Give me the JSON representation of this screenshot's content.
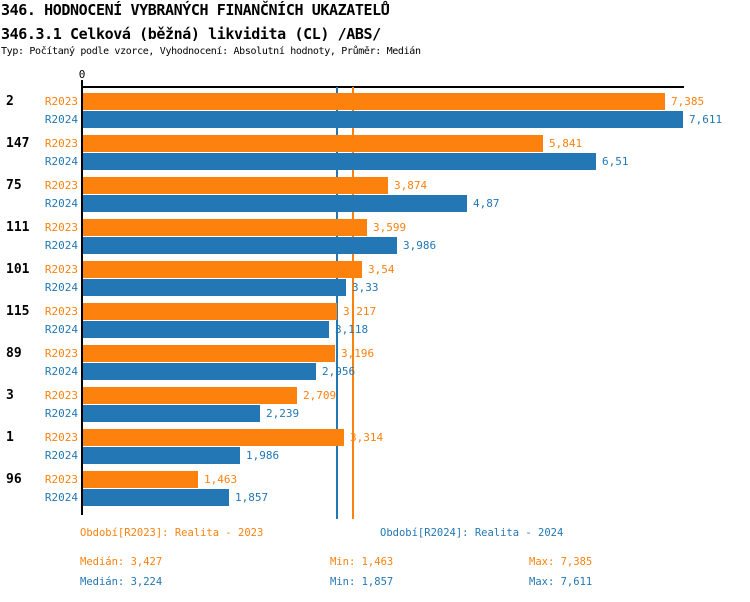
{
  "header": {
    "title": "346. HODNOCENÍ VYBRANÝCH FINANČNÍCH UKAZATELŮ",
    "subtitle": "346.3.1 Celková (běžná) likvidita (CL) /ABS/",
    "meta": "Typ: Počítaný podle vzorce, Vyhodnocení: Absolutní hodnoty, Průměr: Medián"
  },
  "colors": {
    "r2023": "#fd810d",
    "r2024": "#2277b4",
    "axis": "#000000",
    "text": "#000000"
  },
  "chart_data": {
    "type": "bar",
    "orientation": "horizontal",
    "grid": false,
    "legend_position": "none",
    "xlim": [
      0,
      7.611
    ],
    "zero_label": "0",
    "categories": [
      "2",
      "147",
      "75",
      "111",
      "101",
      "115",
      "89",
      "3",
      "1",
      "96"
    ],
    "series": [
      {
        "name": "R2023",
        "color_key": "r2023",
        "values": [
          7.385,
          5.841,
          3.874,
          3.599,
          3.54,
          3.217,
          3.196,
          2.709,
          3.314,
          1.463
        ],
        "value_labels": [
          "7,385",
          "5,841",
          "3,874",
          "3,599",
          "3,54",
          "3,217",
          "3,196",
          "2,709",
          "3,314",
          "1,463"
        ],
        "median": 3.427
      },
      {
        "name": "R2024",
        "color_key": "r2024",
        "values": [
          7.611,
          6.51,
          4.87,
          3.986,
          3.33,
          3.118,
          2.956,
          2.239,
          1.986,
          1.857
        ],
        "value_labels": [
          "7,611",
          "6,51",
          "4,87",
          "3,986",
          "3,33",
          "3,118",
          "2,956",
          "2,239",
          "1,986",
          "1,857"
        ],
        "median": 3.224
      }
    ],
    "median_lines": [
      {
        "series": "R2023",
        "value": 3.427,
        "color_key": "r2023"
      },
      {
        "series": "R2024",
        "value": 3.224,
        "color_key": "r2024"
      }
    ]
  },
  "footer": {
    "periods": [
      {
        "text": "Období[R2023]: Realita - 2023",
        "color_key": "r2023"
      },
      {
        "text": "Období[R2024]: Realita - 2024",
        "color_key": "r2024"
      }
    ],
    "stats": [
      {
        "median": "Medián: 3,427",
        "min": "Min: 1,463",
        "max": "Max: 7,385",
        "color_key": "r2023"
      },
      {
        "median": "Medián: 3,224",
        "min": "Min: 1,857",
        "max": "Max: 7,611",
        "color_key": "r2024"
      }
    ]
  }
}
